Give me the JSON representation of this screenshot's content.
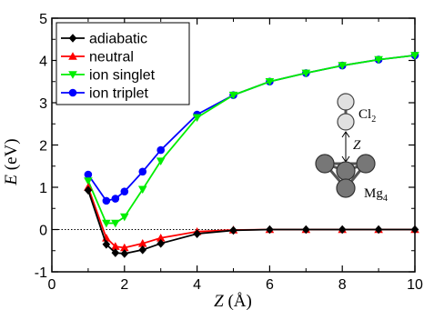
{
  "chart_data": {
    "type": "line",
    "x": [
      1.0,
      1.5,
      1.75,
      2.0,
      2.5,
      3.0,
      4.0,
      5.0,
      6.0,
      7.0,
      8.0,
      9.0,
      10.0
    ],
    "series": [
      {
        "name": "adiabatic",
        "color": "#000000",
        "marker": "diamond",
        "values": [
          0.93,
          -0.35,
          -0.55,
          -0.57,
          -0.48,
          -0.33,
          -0.1,
          -0.02,
          0.0,
          0.0,
          0.0,
          0.0,
          0.0
        ]
      },
      {
        "name": "neutral",
        "color": "#ff0000",
        "marker": "triangle-up",
        "values": [
          1.0,
          -0.2,
          -0.4,
          -0.43,
          -0.33,
          -0.2,
          -0.05,
          -0.01,
          0.0,
          0.0,
          0.0,
          0.0,
          0.0
        ]
      },
      {
        "name": "ion singlet",
        "color": "#00ee00",
        "marker": "triangle-down",
        "values": [
          1.15,
          0.15,
          0.15,
          0.3,
          0.95,
          1.62,
          2.65,
          3.18,
          3.5,
          3.7,
          3.88,
          4.02,
          4.12
        ]
      },
      {
        "name": "ion triplet",
        "color": "#0000ff",
        "marker": "circle",
        "values": [
          1.3,
          0.68,
          0.73,
          0.9,
          1.37,
          1.88,
          2.72,
          3.18,
          3.5,
          3.7,
          3.88,
          4.02,
          4.12
        ]
      }
    ],
    "xlim": [
      0,
      10
    ],
    "ylim": [
      -1,
      5
    ],
    "xticks": [
      0,
      2,
      4,
      6,
      8,
      10
    ],
    "yticks": [
      -1,
      0,
      1,
      2,
      3,
      4,
      5
    ],
    "xlabel_var": "Z",
    "xlabel_unit": " (Å)",
    "ylabel_var": "E",
    "ylabel_unit": " (eV)",
    "reference_line_y": 0,
    "legend_position": "top-left",
    "grid": false
  },
  "inset": {
    "cl2_label": "Cl",
    "cl2_subscript": "2",
    "z_label": "Z",
    "mg4_label": "Mg",
    "mg4_subscript": "4"
  }
}
